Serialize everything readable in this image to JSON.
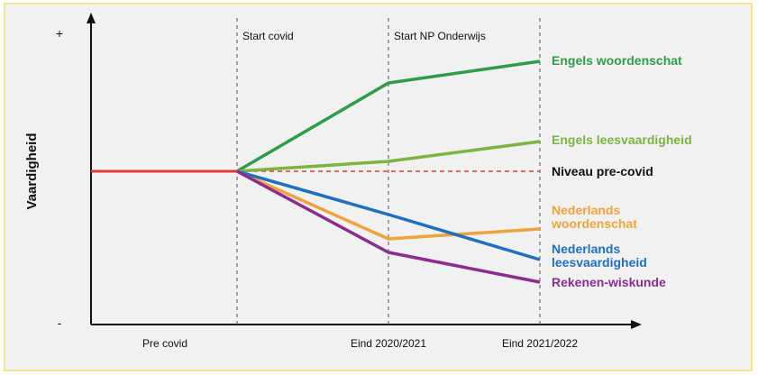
{
  "chart_data": {
    "type": "line",
    "title": "",
    "xlabel": "",
    "ylabel": "Vaardigheid",
    "y_axis_top_label": "+",
    "y_axis_bottom_label": "-",
    "categories": [
      "Pre covid",
      "Start covid",
      "Eind 2020/2021",
      "Eind 2021/2022"
    ],
    "x_tick_labels": [
      "Pre covid",
      "",
      "Eind 2020/2021",
      "Eind 2021/2022"
    ],
    "markers": [
      {
        "label": "Start covid",
        "at": 1
      },
      {
        "label": "Start NP Onderwijs",
        "at": 2
      },
      {
        "label": "",
        "at": 3
      }
    ],
    "baseline": {
      "name": "Niveau pre-covid",
      "value": 0,
      "color": "#e03a3a",
      "style": "dashed"
    },
    "series": [
      {
        "name": "Engels woordenschat",
        "color": "#2e9d48",
        "points": [
          [
            1,
            0
          ],
          [
            2,
            0.98
          ],
          [
            3,
            1.22
          ]
        ]
      },
      {
        "name": "Engels leesvaardigheid",
        "color": "#7cb341",
        "points": [
          [
            1,
            0
          ],
          [
            2,
            0.11
          ],
          [
            3,
            0.33
          ]
        ]
      },
      {
        "name": "Nederlands woordenschat",
        "color": "#f0a23c",
        "points": [
          [
            1,
            0
          ],
          [
            2,
            -0.75
          ],
          [
            3,
            -0.64
          ]
        ]
      },
      {
        "name": "Nederlands leesvaardigheid",
        "color": "#1e6fbf",
        "points": [
          [
            1,
            0
          ],
          [
            2,
            -0.48
          ],
          [
            3,
            -0.98
          ]
        ]
      },
      {
        "name": "Rekenen-wiskunde",
        "color": "#8e2b8f",
        "points": [
          [
            1,
            0
          ],
          [
            2,
            -0.9
          ],
          [
            3,
            -1.23
          ]
        ]
      }
    ],
    "pre_covid_line": {
      "color": "#e03a3a",
      "points": [
        [
          0,
          0
        ],
        [
          1,
          0
        ]
      ]
    },
    "legend": "labels at line ends (right)",
    "grid": false
  }
}
